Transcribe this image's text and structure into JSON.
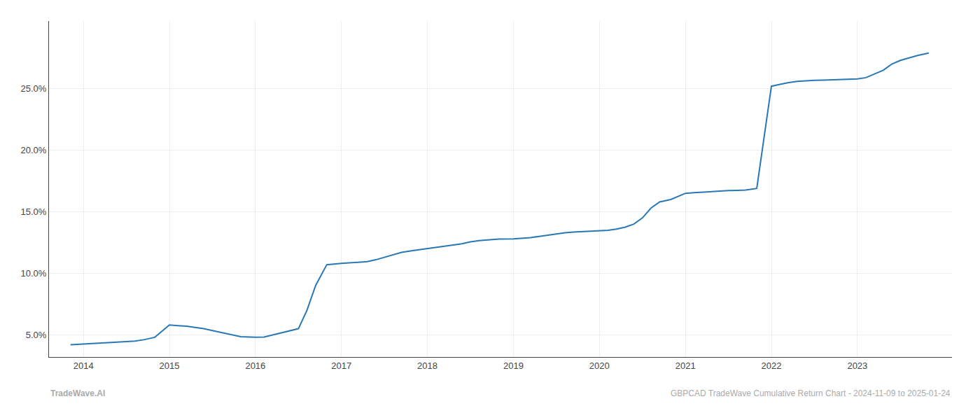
{
  "chart_data": {
    "type": "line",
    "x": [
      2013.85,
      2014.0,
      2014.1,
      2014.2,
      2014.3,
      2014.4,
      2014.5,
      2014.6,
      2014.7,
      2014.83,
      2015.0,
      2015.1,
      2015.2,
      2015.3,
      2015.4,
      2015.5,
      2015.6,
      2015.7,
      2015.83,
      2016.0,
      2016.1,
      2016.5,
      2016.6,
      2016.7,
      2016.83,
      2017.0,
      2017.1,
      2017.2,
      2017.3,
      2017.4,
      2017.5,
      2017.6,
      2017.7,
      2017.83,
      2018.0,
      2018.1,
      2018.2,
      2018.3,
      2018.4,
      2018.5,
      2018.6,
      2018.7,
      2018.83,
      2019.0,
      2019.1,
      2019.2,
      2019.3,
      2019.4,
      2019.5,
      2019.6,
      2019.7,
      2019.83,
      2020.0,
      2020.1,
      2020.2,
      2020.3,
      2020.4,
      2020.5,
      2020.6,
      2020.7,
      2020.83,
      2021.0,
      2021.1,
      2021.2,
      2021.3,
      2021.4,
      2021.5,
      2021.6,
      2021.7,
      2021.83,
      2022.0,
      2022.1,
      2022.2,
      2022.3,
      2022.4,
      2022.5,
      2022.6,
      2022.7,
      2022.83,
      2023.0,
      2023.1,
      2023.2,
      2023.3,
      2023.4,
      2023.5,
      2023.6,
      2023.7,
      2023.83
    ],
    "values": [
      4.2,
      4.25,
      4.3,
      4.35,
      4.38,
      4.42,
      4.45,
      4.5,
      4.6,
      4.8,
      5.8,
      5.75,
      5.7,
      5.6,
      5.5,
      5.35,
      5.2,
      5.05,
      4.85,
      4.8,
      4.82,
      5.5,
      7.0,
      9.0,
      10.7,
      10.8,
      10.85,
      10.9,
      10.95,
      11.1,
      11.3,
      11.5,
      11.7,
      11.85,
      12.0,
      12.1,
      12.2,
      12.3,
      12.4,
      12.55,
      12.65,
      12.72,
      12.78,
      12.8,
      12.85,
      12.9,
      13.0,
      13.1,
      13.2,
      13.3,
      13.35,
      13.4,
      13.45,
      13.5,
      13.6,
      13.75,
      14.0,
      14.5,
      15.3,
      15.8,
      16.0,
      16.5,
      16.55,
      16.6,
      16.65,
      16.7,
      16.72,
      16.74,
      16.76,
      16.9,
      25.2,
      25.35,
      25.5,
      25.6,
      25.65,
      25.68,
      25.7,
      25.72,
      25.75,
      25.8,
      25.9,
      26.2,
      26.5,
      27.0,
      27.3,
      27.5,
      27.7,
      27.9
    ],
    "color": "#2878b5",
    "xlim": [
      2013.6,
      2024.1
    ],
    "xticks": [
      2014,
      2015,
      2016,
      2017,
      2018,
      2019,
      2020,
      2021,
      2022,
      2023
    ],
    "ylim": [
      3.2,
      30.5
    ],
    "yticks": [
      {
        "value": 5.0,
        "label": "5.0%"
      },
      {
        "value": 10.0,
        "label": "10.0%"
      },
      {
        "value": 15.0,
        "label": "15.0%"
      },
      {
        "value": 20.0,
        "label": "20.0%"
      },
      {
        "value": 25.0,
        "label": "25.0%"
      }
    ],
    "grid": true,
    "annotations": [
      "TradeWave.AI",
      "GBPCAD TradeWave Cumulative Return Chart - 2024-11-09 to 2025-01-24"
    ]
  }
}
